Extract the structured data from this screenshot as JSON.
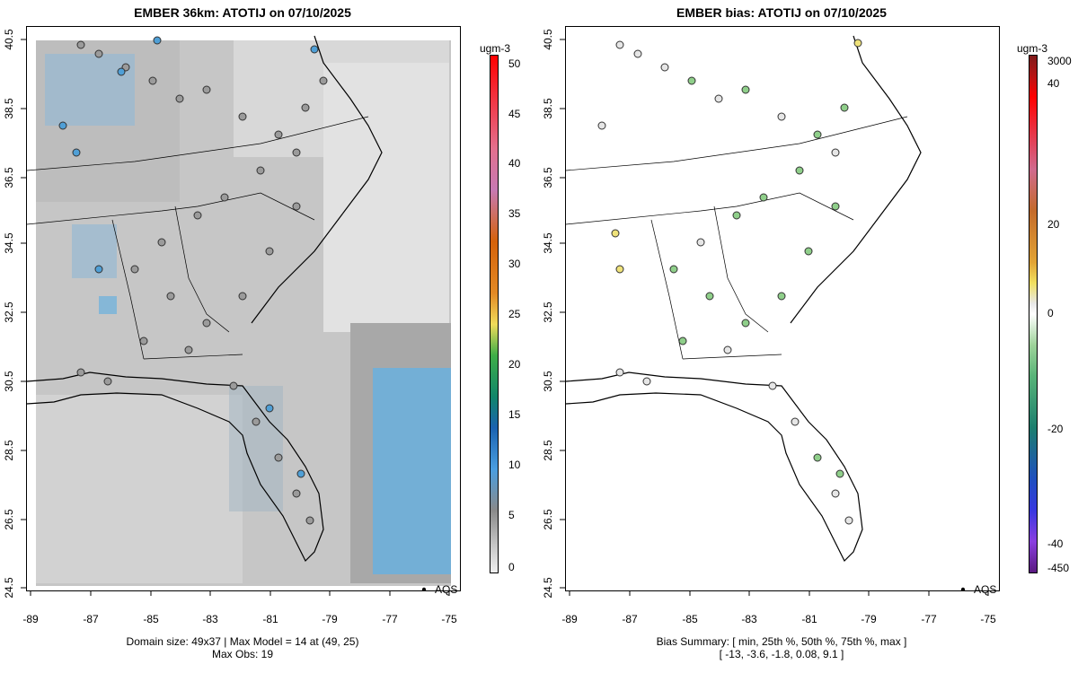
{
  "panel_left": {
    "title": "EMBER 36km: ATOTIJ on 07/10/2025",
    "footer_line1": "Domain size: 49x37 | Max Model = 14 at (49, 25)",
    "footer_line2": "Max Obs: 19",
    "unit": "ugm-3",
    "legend_label": "AQS",
    "colorbar_ticks": [
      "50",
      "45",
      "40",
      "35",
      "30",
      "25",
      "20",
      "15",
      "10",
      "5",
      "0"
    ]
  },
  "panel_right": {
    "title": "EMBER bias: ATOTIJ on 07/10/2025",
    "footer_line1": "Bias Summary: [ min, 25th %, 50th %, 75th %, max ]",
    "footer_line2": "[ -13,   -3.6,   -1.8,   0.08,   9.1 ]",
    "unit": "ugm-3",
    "legend_label": "AQS",
    "colorbar_ticks": [
      "3000",
      "40",
      "20",
      "0",
      "-20",
      "-40",
      "-450"
    ]
  },
  "axes": {
    "x_ticks": [
      "-89",
      "-87",
      "-85",
      "-83",
      "-81",
      "-79",
      "-77",
      "-75"
    ],
    "y_ticks": [
      "40.5",
      "38.5",
      "36.5",
      "34.5",
      "32.5",
      "30.5",
      "28.5",
      "26.5",
      "24.5"
    ]
  },
  "colors": {
    "map_gray": "#bdbdbd",
    "map_light": "#e3e3e3",
    "map_blue": "#6bb3e0",
    "obs_gray": "#9b9b9b",
    "obs_blue": "#4f9fd6",
    "bias_white": "#e6e6e6",
    "bias_green": "#8fcf8a",
    "bias_yellow": "#efe27a"
  },
  "map_data": {
    "lon_range": [
      -89.2,
      -74.8
    ],
    "lat_range": [
      24.5,
      40.8
    ]
  }
}
